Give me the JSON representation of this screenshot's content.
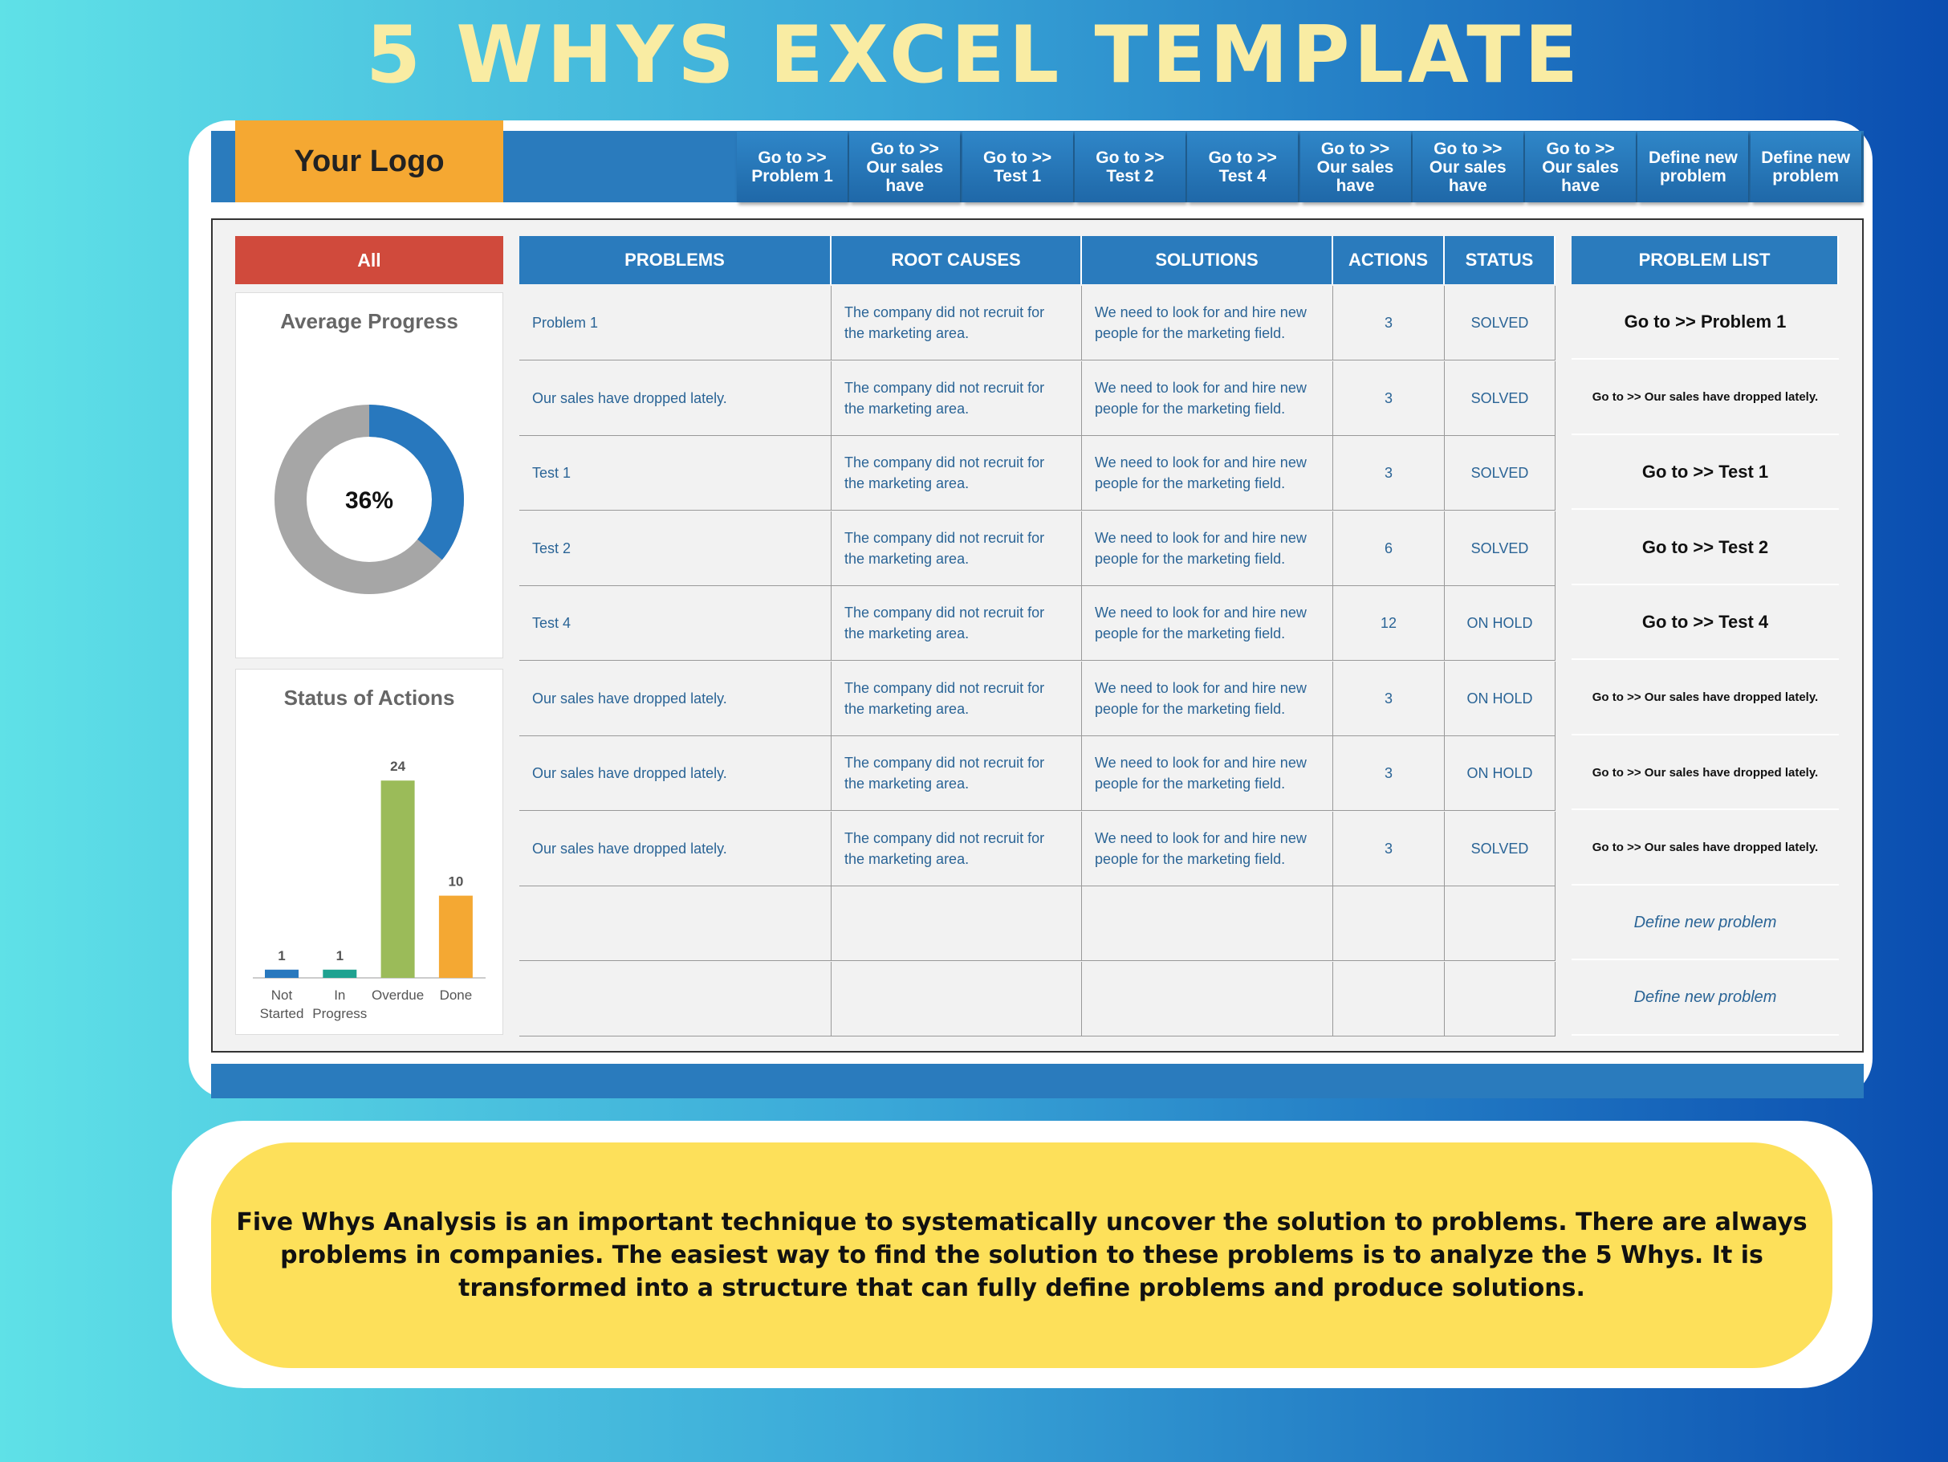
{
  "header": {
    "title": "5 WHYS EXCEL TEMPLATE",
    "logo": "Your Logo"
  },
  "nav": [
    "Go to >> Problem 1",
    "Go to >> Our sales have",
    "Go to >> Test 1",
    "Go to >> Test 2",
    "Go to >> Test 4",
    "Go to >> Our sales have",
    "Go to >> Our sales have",
    "Go to >> Our sales have",
    "Define new problem",
    "Define new problem"
  ],
  "filter": "All",
  "progress": {
    "title": "Average Progress",
    "value": 36,
    "value_label": "36%",
    "colors": [
      "#2878be",
      "#a6a6a6"
    ]
  },
  "status_chart": {
    "type": "bar",
    "title": "Status of Actions",
    "categories": [
      "Not Started",
      "In Progress",
      "Overdue",
      "Done"
    ],
    "values": [
      1,
      1,
      24,
      10
    ],
    "colors": [
      "#2878be",
      "#1fa290",
      "#9bbb59",
      "#f4a833"
    ],
    "ylim": [
      0,
      25
    ]
  },
  "table": {
    "headers": [
      "PROBLEMS",
      "ROOT CAUSES",
      "SOLUTIONS",
      "ACTIONS",
      "STATUS"
    ],
    "rows": [
      [
        "Problem 1",
        "The company did not recruit for the marketing area.",
        "We need to look for and hire new people for the marketing field.",
        "3",
        "SOLVED"
      ],
      [
        "Our sales have dropped lately.",
        "The company did not recruit for the marketing area.",
        "We need to look for and hire new people for the marketing field.",
        "3",
        "SOLVED"
      ],
      [
        "Test 1",
        "The company did not recruit for the marketing area.",
        "We need to look for and hire new people for the marketing field.",
        "3",
        "SOLVED"
      ],
      [
        "Test 2",
        "The company did not recruit for the marketing area.",
        "We need to look for and hire new people for the marketing field.",
        "6",
        "SOLVED"
      ],
      [
        "Test 4",
        "The company did not recruit for the marketing area.",
        "We need to look for and hire new people for the marketing field.",
        "12",
        "ON HOLD"
      ],
      [
        "Our sales have dropped lately.",
        "The company did not recruit for the marketing area.",
        "We need to look for and hire new people for the marketing field.",
        "3",
        "ON HOLD"
      ],
      [
        "Our sales have dropped lately.",
        "The company did not recruit for the marketing area.",
        "We need to look for and hire new people for the marketing field.",
        "3",
        "ON HOLD"
      ],
      [
        "Our sales have dropped lately.",
        "The company did not recruit for the marketing area.",
        "We need to look for and hire new people for the marketing field.",
        "3",
        "SOLVED"
      ]
    ]
  },
  "problem_list": {
    "title": "PROBLEM LIST",
    "items": [
      "Go to >> Problem 1",
      "Go to >> Our sales have dropped lately.",
      "Go to >> Test 1",
      "Go to >> Test 2",
      "Go to >> Test 4",
      "Go to >> Our sales have dropped lately.",
      "Go to >> Our sales have dropped lately.",
      "Go to >> Our sales have dropped lately.",
      "Define new problem",
      "Define new problem"
    ]
  },
  "description": "Five Whys Analysis is an important technique to systematically uncover the solution to problems. There are always problems in companies. The easiest way to find the solution to these problems is to analyze the 5 Whys. It is transformed into a structure that can fully define problems and produce solutions."
}
